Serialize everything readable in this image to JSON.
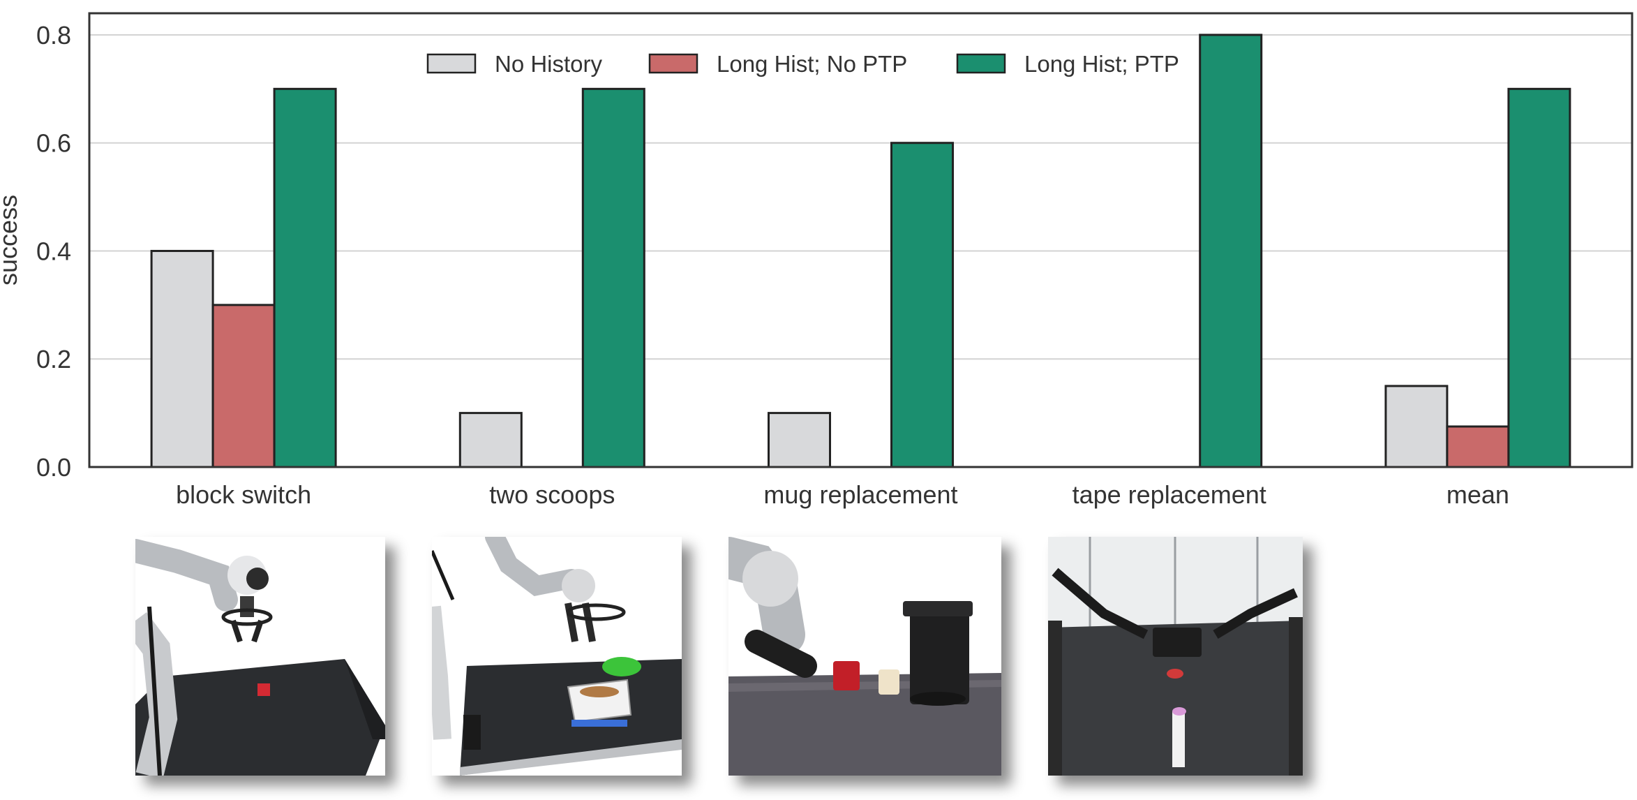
{
  "chart_data": {
    "type": "bar",
    "title": "",
    "xlabel": "",
    "ylabel": "success",
    "ylim": [
      0,
      0.84
    ],
    "yticks": [
      0.0,
      0.2,
      0.4,
      0.6,
      0.8
    ],
    "ytick_labels": [
      "0.0",
      "0.2",
      "0.4",
      "0.6",
      "0.8"
    ],
    "grid": "horizontal",
    "legend_position": "top-center",
    "categories": [
      "block switch",
      "two scoops",
      "mug replacement",
      "tape replacement",
      "mean"
    ],
    "series": [
      {
        "name": "No History",
        "color": "#d8d9db",
        "values": [
          0.4,
          0.1,
          0.1,
          0.0,
          0.15
        ]
      },
      {
        "name": "Long Hist; No PTP",
        "color": "#c96a6a",
        "values": [
          0.3,
          0.0,
          0.0,
          0.0,
          0.075
        ]
      },
      {
        "name": "Long Hist; PTP",
        "color": "#1b8f6f",
        "values": [
          0.7,
          0.7,
          0.6,
          0.8,
          0.7
        ]
      }
    ]
  },
  "photos": [
    {
      "task": "block switch",
      "icon": "robot-arm-block-photo"
    },
    {
      "task": "two scoops",
      "icon": "robot-arm-scoop-photo"
    },
    {
      "task": "mug replacement",
      "icon": "robot-arm-mug-photo"
    },
    {
      "task": "tape replacement",
      "icon": "dual-arm-tape-photo"
    }
  ]
}
